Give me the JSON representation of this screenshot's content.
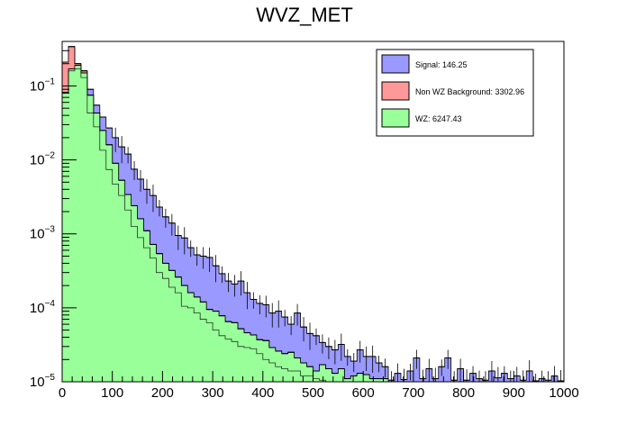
{
  "chart_data": {
    "type": "histogram",
    "title": "WVZ_MET",
    "xlabel": "",
    "ylabel": "",
    "xlim": [
      0,
      1000
    ],
    "ylim": [
      1e-05,
      0.4
    ],
    "yscale": "log",
    "bin_width": 12.5,
    "stacked": true,
    "grid": false,
    "legend_position": "top-right",
    "x_ticks": [
      0,
      100,
      200,
      300,
      400,
      500,
      600,
      700,
      800,
      900,
      1000
    ],
    "x_tick_labels": [
      "0",
      "100",
      "200",
      "300",
      "400",
      "500",
      "600",
      "700",
      "800",
      "900",
      "1000"
    ],
    "y_ticks": [
      1e-05,
      0.0001,
      0.001,
      0.01,
      0.1
    ],
    "y_tick_labels": [
      {
        "base": "10",
        "exp": "−5"
      },
      {
        "base": "10",
        "exp": "−4"
      },
      {
        "base": "10",
        "exp": "−3"
      },
      {
        "base": "10",
        "exp": "−2"
      },
      {
        "base": "10",
        "exp": "−1"
      }
    ],
    "series": [
      {
        "name": "WZ",
        "legend": "WZ: 6247.43",
        "color": "#99ff99",
        "totals": [
          0.082,
          0.17,
          0.19,
          0.15,
          0.075,
          0.043,
          0.025,
          0.016,
          0.009,
          0.0053,
          0.0034,
          0.0024,
          0.0016,
          0.0011,
          0.00072,
          0.00054,
          0.0004,
          0.00032,
          0.00026,
          0.0002,
          0.00016,
          0.00014,
          0.00012,
          9.5e-05,
          9e-05,
          7.8e-05,
          6.5e-05,
          6.3e-05,
          5.2e-05,
          4.6e-05,
          4.3e-05,
          3.7e-05,
          3.6e-05,
          2.9e-05,
          2.6e-05,
          2.4e-05,
          2.5e-05,
          2.1e-05,
          1.8e-05,
          1.6e-05,
          1.4e-05,
          1.7e-05,
          1.5e-05,
          1.3e-05,
          1.5e-05,
          1.1e-05,
          1.2e-05,
          1.3e-05,
          1.25e-05,
          1.1e-05,
          1.1e-05,
          1.1e-05,
          0,
          0,
          0,
          0,
          0,
          0,
          0,
          0,
          0,
          0,
          0,
          0,
          0,
          0,
          0,
          0,
          0,
          0,
          0,
          0,
          0,
          0,
          0,
          0,
          0,
          0,
          0,
          0
        ]
      },
      {
        "name": "Non WZ Background",
        "legend": "Non WZ Background: 3302.96",
        "color": "#ff9999",
        "totals": [
          0.21,
          0.34,
          0.2,
          0.16,
          0.075,
          0.043,
          0.025,
          0.016,
          0.009,
          0.0053,
          0.0034,
          0.0024,
          0.0016,
          0.0011,
          0.00072,
          0.00054,
          0.0004,
          0.00032,
          0.00026,
          0.0002,
          0.00016,
          0.00014,
          0.00012,
          9.5e-05,
          9e-05,
          7.8e-05,
          6.5e-05,
          6.3e-05,
          5.2e-05,
          4.6e-05,
          4.3e-05,
          3.7e-05,
          3.6e-05,
          2.9e-05,
          2.6e-05,
          2.4e-05,
          2.5e-05,
          2.1e-05,
          1.8e-05,
          1.6e-05,
          1.4e-05,
          1.7e-05,
          1.5e-05,
          1.3e-05,
          1.5e-05,
          1.1e-05,
          1.2e-05,
          1.3e-05,
          1.25e-05,
          1.1e-05,
          1.1e-05,
          1.1e-05,
          0,
          0,
          0,
          0,
          0,
          0,
          0,
          0,
          0,
          0,
          0,
          0,
          0,
          0,
          0,
          0,
          0,
          0,
          0,
          0,
          0,
          0,
          0,
          0,
          0,
          0,
          0,
          0
        ]
      },
      {
        "name": "Signal",
        "legend": "Signal: 146.25",
        "color": "#9999ff",
        "totals": [
          0.21,
          0.34,
          0.2,
          0.16,
          0.09,
          0.055,
          0.038,
          0.027,
          0.02,
          0.015,
          0.012,
          0.0075,
          0.0055,
          0.004,
          0.0033,
          0.0023,
          0.0017,
          0.0014,
          0.00095,
          0.00088,
          0.00065,
          0.00052,
          0.0005,
          0.00048,
          0.00037,
          0.00029,
          0.00023,
          0.00021,
          0.00023,
          0.00016,
          0.00013,
          0.000115,
          0.00011,
          8.5e-05,
          9e-05,
          7.5e-05,
          6e-05,
          8.5e-05,
          5.5e-05,
          4.5e-05,
          4.2e-05,
          3.4e-05,
          3e-05,
          2.7e-05,
          3.2e-05,
          2.2e-05,
          1.9e-05,
          2.7e-05,
          2.2e-05,
          2.2e-05,
          1.8e-05,
          1.6e-05,
          1.05e-05,
          1.3e-05,
          1.07e-05,
          1.4e-05,
          2.1e-05,
          1.1e-05,
          1.5e-05,
          1.1e-05,
          1.6e-05,
          2.1e-05,
          1.05e-05,
          1.5e-05,
          1.05e-05,
          1.3e-05,
          1.1e-05,
          1.05e-05,
          1.4e-05,
          1.13e-05,
          1.3e-05,
          1.1e-05,
          1.2e-05,
          1.05e-05,
          1.4e-05,
          1.03e-05,
          1.1e-05,
          1.05e-05,
          1.2e-05,
          1.03e-05
        ]
      }
    ],
    "overlay_curve": {
      "name": "Non WZ Background (unstacked)",
      "color": "#000000",
      "values": [
        0.08,
        0.16,
        0.17,
        0.13,
        0.043,
        0.028,
        0.0135,
        0.0074,
        0.0047,
        0.0033,
        0.0021,
        0.00126,
        0.00089,
        0.00065,
        0.00047,
        0.0003,
        0.00025,
        0.00019,
        0.00016,
        0.000105,
        0.0001,
        8.5e-05,
        7e-05,
        6.3e-05,
        5e-05,
        4.2e-05,
        3.8e-05,
        3.5e-05,
        3e-05,
        2.9e-05,
        2.8e-05,
        2.4e-05,
        2e-05,
        1.8e-05,
        1.6e-05,
        1.5e-05,
        1.4e-05,
        1.4e-05,
        1.2e-05,
        1.2e-05,
        1.1e-05,
        1.05e-05,
        0,
        0,
        0,
        0,
        0,
        0,
        0,
        0,
        0,
        0,
        0,
        0,
        0,
        0,
        0,
        0,
        0,
        0,
        0,
        0,
        0,
        0,
        0,
        0,
        0,
        0,
        0,
        0,
        0,
        0,
        0,
        0,
        0,
        0,
        0,
        0,
        0,
        0
      ]
    }
  }
}
